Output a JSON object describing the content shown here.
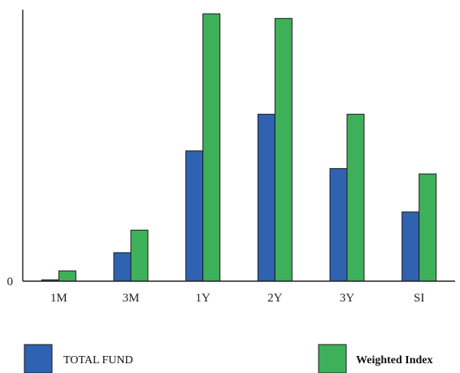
{
  "chart_data": {
    "type": "bar",
    "title": "",
    "xlabel": "",
    "ylabel": "",
    "categories": [
      "1M",
      "3M",
      "1Y",
      "2Y",
      "3Y",
      "SI"
    ],
    "y_tick_labels": [
      "0"
    ],
    "ylim": [
      0,
      100
    ],
    "grid": false,
    "legend_position": "bottom",
    "series": [
      {
        "name": "TOTAL FUND",
        "color": "#2f62b0",
        "values": [
          0.5,
          10.5,
          48.0,
          61.5,
          41.5,
          25.5
        ]
      },
      {
        "name": "Weighted Index",
        "color": "#3fb05a",
        "values": [
          3.8,
          18.8,
          98.5,
          96.8,
          61.5,
          39.5
        ]
      }
    ]
  }
}
